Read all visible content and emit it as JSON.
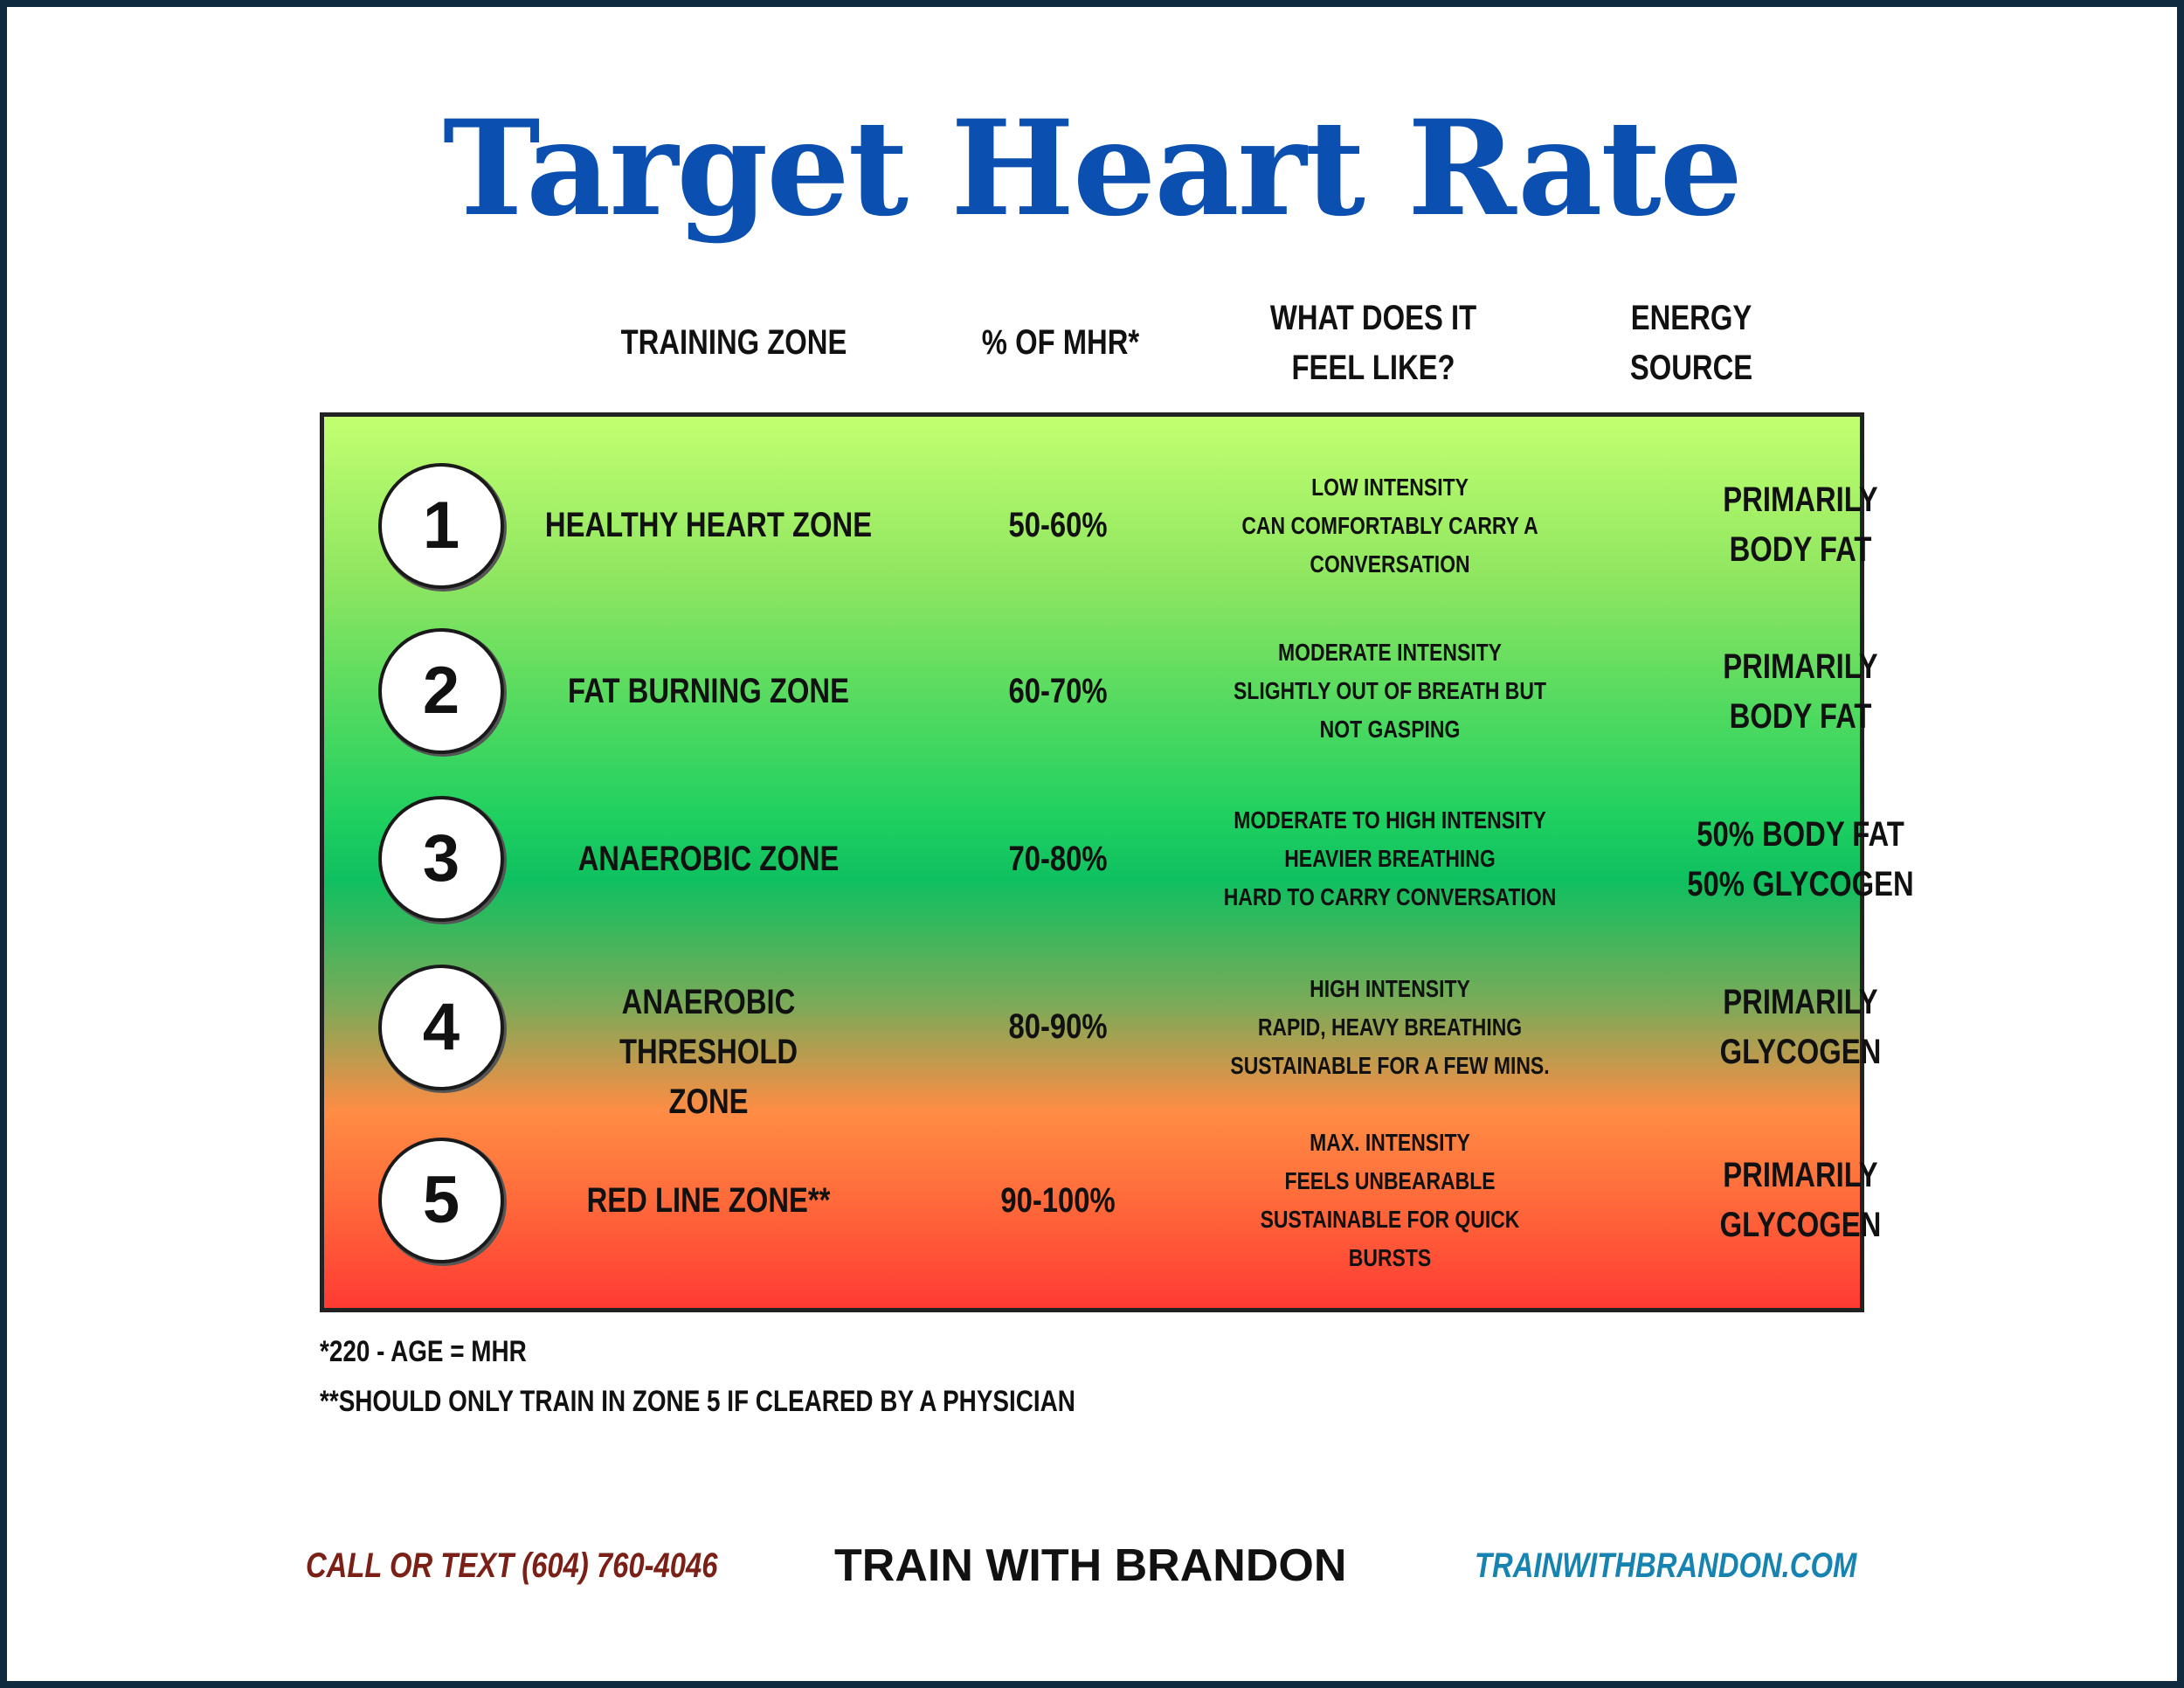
{
  "title": "Target Heart Rate",
  "headers": {
    "training_zone": "Training Zone",
    "pct_mhr": "% of MHR*",
    "feel_line1": "What Does it",
    "feel_line2": "Feel Like?",
    "energy_line1": "Energy",
    "energy_line2": "Source"
  },
  "zones": [
    {
      "number": "1",
      "name_line1": "Healthy Heart Zone",
      "name_line2": "",
      "pct": "50-60%",
      "feel": [
        "Low intensity",
        "Can comfortably carry a",
        "conversation"
      ],
      "energy": [
        "Primarily",
        "Body Fat"
      ]
    },
    {
      "number": "2",
      "name_line1": "Fat Burning Zone",
      "name_line2": "",
      "pct": "60-70%",
      "feel": [
        "Moderate intensity",
        "Slightly out of breath but",
        "not gasping"
      ],
      "energy": [
        "Primarily",
        "Body Fat"
      ]
    },
    {
      "number": "3",
      "name_line1": "Anaerobic Zone",
      "name_line2": "",
      "pct": "70-80%",
      "feel": [
        "Moderate to high intensity",
        "Heavier breathing",
        "Hard to carry conversation"
      ],
      "energy": [
        "50% Body Fat",
        "50% Glycogen"
      ]
    },
    {
      "number": "4",
      "name_line1": "Anaerobic Threshold",
      "name_line2": "Zone",
      "pct": "80-90%",
      "feel": [
        "High intensity",
        "Rapid, heavy breathing",
        "Sustainable for a few mins."
      ],
      "energy": [
        "Primarily",
        "Glycogen"
      ]
    },
    {
      "number": "5",
      "name_line1": "Red Line Zone**",
      "name_line2": "",
      "pct": "90-100%",
      "feel": [
        "Max. intensity",
        "Feels unbearable",
        "Sustainable for quick",
        "bursts"
      ],
      "energy": [
        "Primarily",
        "Glycogen"
      ]
    }
  ],
  "footnotes": {
    "note1": "*220 - age = MHR",
    "note2": "**should only train in Zone 5 if cleared by a physician"
  },
  "footer": {
    "call": "Call or Text (604) 760-4046",
    "brand": "TRAIN WITH BRANDON",
    "website": "trainwithbrandon.com"
  }
}
